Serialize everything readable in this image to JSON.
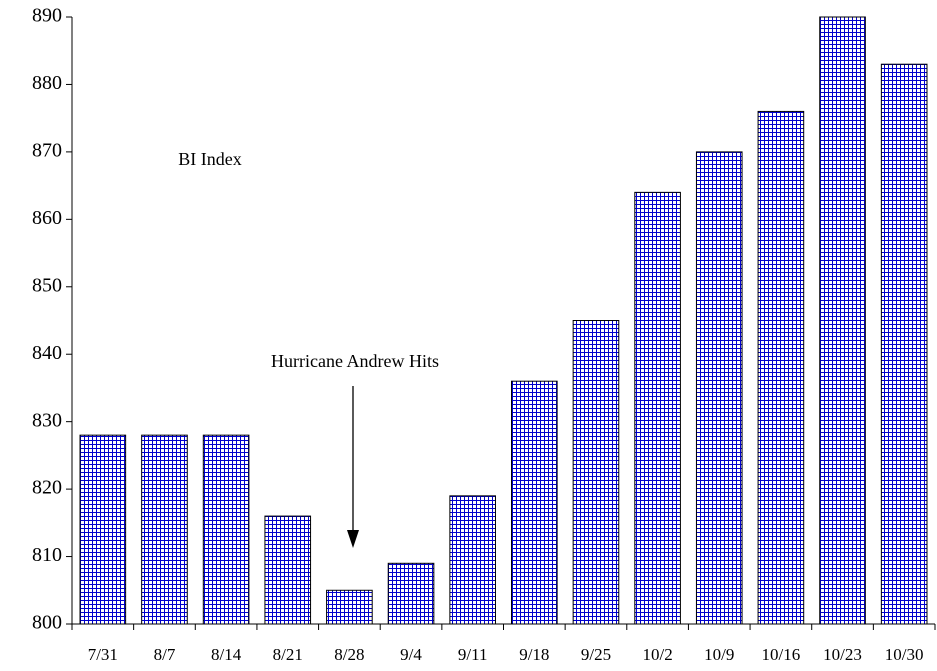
{
  "chart_data": {
    "type": "bar",
    "categories": [
      "7/31",
      "8/7",
      "8/14",
      "8/21",
      "8/28",
      "9/4",
      "9/11",
      "9/18",
      "9/25",
      "10/2",
      "10/9",
      "10/16",
      "10/23",
      "10/30"
    ],
    "values": [
      828,
      828,
      828,
      816,
      805,
      809,
      819,
      836,
      845,
      864,
      870,
      876,
      890,
      883
    ],
    "color": "#0000cc",
    "ylim": [
      800,
      890
    ],
    "yticks": [
      800,
      810,
      820,
      830,
      840,
      850,
      860,
      870,
      880,
      890
    ],
    "annotations": [
      "BI Index",
      "Hurricane Andrew Hits"
    ]
  }
}
